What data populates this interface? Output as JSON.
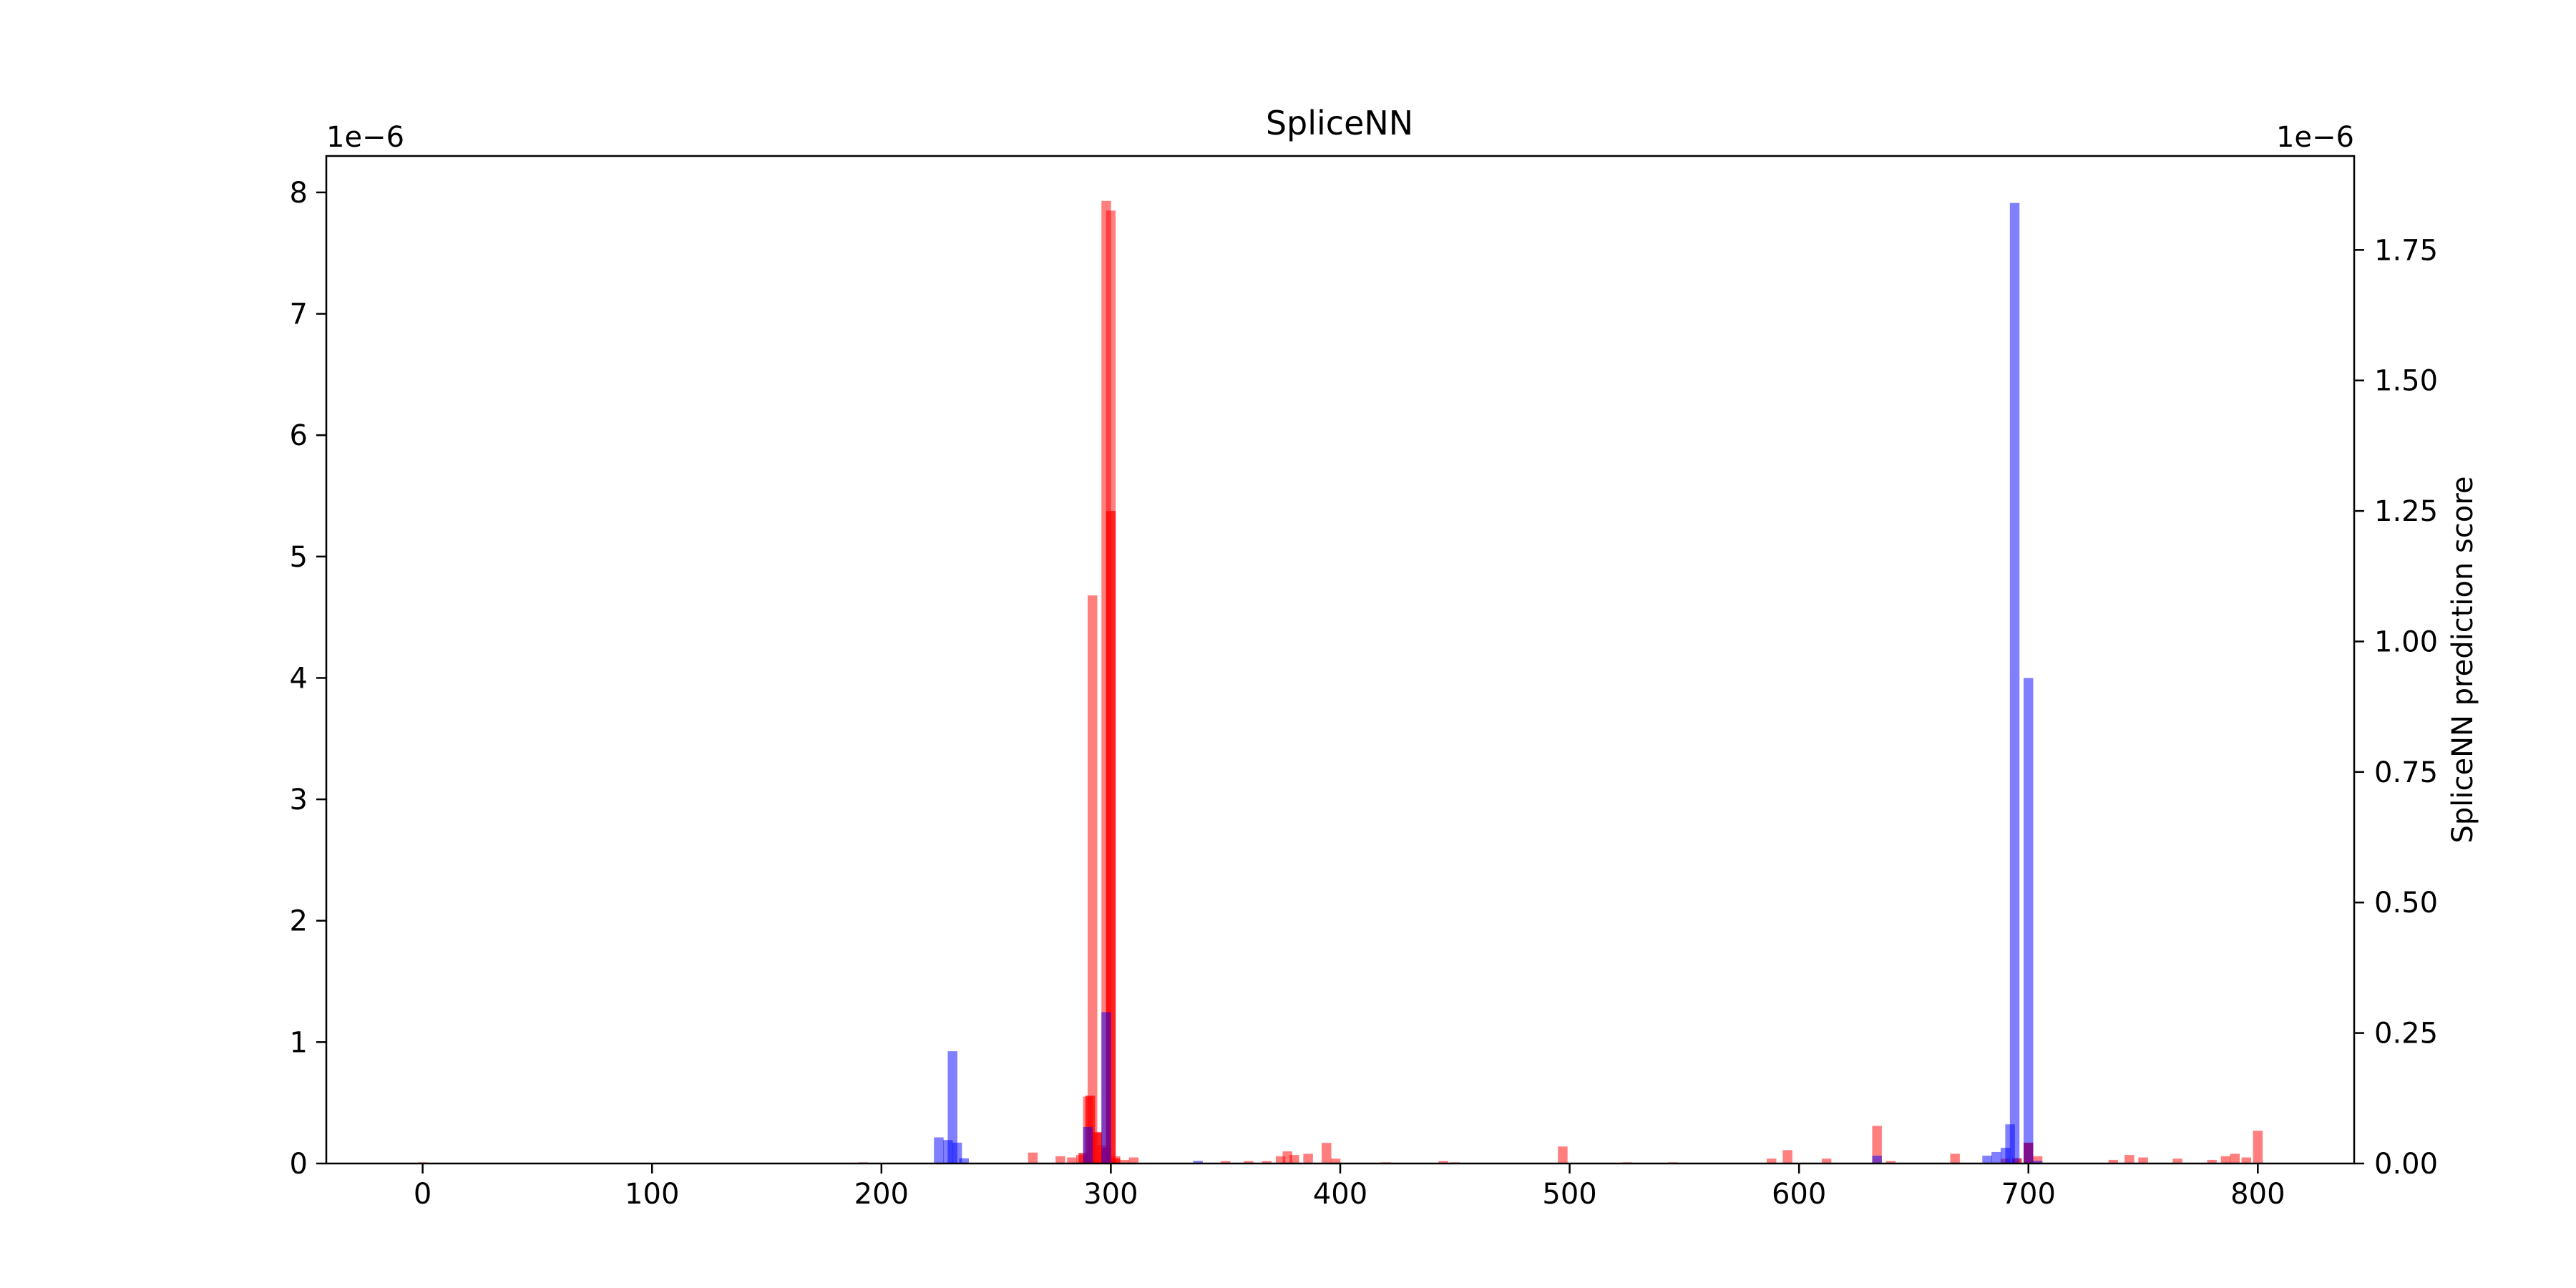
{
  "chart_data": {
    "type": "bar",
    "title": "SpliceNN",
    "xlabel": "",
    "ylabel_left": "",
    "ylabel_right": "SpliceNN prediction score",
    "xlim": [
      -42,
      842
    ],
    "ylim_left": [
      0,
      8.3
    ],
    "ylim_right": [
      0,
      1.93
    ],
    "offset_left": "1e−6",
    "offset_right": "1e−6",
    "bar_width": 4.2,
    "x_ticks": [
      "0",
      "100",
      "200",
      "300",
      "400",
      "500",
      "600",
      "700",
      "800"
    ],
    "x_tick_values": [
      0,
      100,
      200,
      300,
      400,
      500,
      600,
      700,
      800
    ],
    "y_ticks_left": [
      "0",
      "1",
      "2",
      "3",
      "4",
      "5",
      "6",
      "7",
      "8"
    ],
    "y_tick_values_left": [
      0,
      1,
      2,
      3,
      4,
      5,
      6,
      7,
      8
    ],
    "y_ticks_right": [
      "0.00",
      "0.25",
      "0.50",
      "0.75",
      "1.00",
      "1.25",
      "1.50",
      "1.75"
    ],
    "y_tick_values_right": [
      0,
      0.25,
      0.5,
      0.75,
      1.0,
      1.25,
      1.5,
      1.75
    ],
    "series": [
      {
        "color": "#ff0000",
        "opacity": 0.5,
        "axis": "left",
        "points": [
          [
            0,
            0.01
          ],
          [
            192,
            0.01
          ],
          [
            266,
            0.09
          ],
          [
            278,
            0.06
          ],
          [
            283,
            0.05
          ],
          [
            287,
            0.07
          ],
          [
            290,
            0.55
          ],
          [
            292,
            4.68
          ],
          [
            294,
            0.25
          ],
          [
            296,
            0.15
          ],
          [
            298,
            7.93
          ],
          [
            300,
            7.85
          ],
          [
            302,
            0.06
          ],
          [
            306,
            0.03
          ],
          [
            310,
            0.05
          ],
          [
            350,
            0.02
          ],
          [
            360,
            0.02
          ],
          [
            368,
            0.02
          ],
          [
            374,
            0.06
          ],
          [
            377,
            0.1
          ],
          [
            380,
            0.07
          ],
          [
            386,
            0.08
          ],
          [
            394,
            0.17
          ],
          [
            398,
            0.04
          ],
          [
            420,
            0.01
          ],
          [
            445,
            0.02
          ],
          [
            450,
            0.01
          ],
          [
            497,
            0.14
          ],
          [
            525,
            0.01
          ],
          [
            545,
            0.01
          ],
          [
            588,
            0.04
          ],
          [
            595,
            0.11
          ],
          [
            612,
            0.04
          ],
          [
            634,
            0.31
          ],
          [
            640,
            0.02
          ],
          [
            668,
            0.08
          ],
          [
            690,
            0.04
          ],
          [
            700,
            0.17
          ],
          [
            704,
            0.06
          ],
          [
            737,
            0.03
          ],
          [
            744,
            0.07
          ],
          [
            750,
            0.05
          ],
          [
            765,
            0.04
          ],
          [
            780,
            0.03
          ],
          [
            786,
            0.06
          ],
          [
            790,
            0.08
          ],
          [
            795,
            0.05
          ],
          [
            800,
            0.27
          ]
        ]
      },
      {
        "color": "#ff0000",
        "opacity": 0.75,
        "axis": "right",
        "points": [
          [
            288,
            0.02
          ],
          [
            291,
            0.13
          ],
          [
            294,
            0.06
          ],
          [
            298,
            0.03
          ],
          [
            300,
            1.25
          ],
          [
            302,
            0.01
          ],
          [
            695,
            0.01
          ],
          [
            700,
            0.04
          ]
        ]
      },
      {
        "color": "#0000ff",
        "opacity": 0.5,
        "axis": "right",
        "points": [
          [
            225,
            0.05
          ],
          [
            229,
            0.045
          ],
          [
            231,
            0.215
          ],
          [
            233,
            0.04
          ],
          [
            236,
            0.01
          ],
          [
            290,
            0.07
          ],
          [
            298,
            0.29
          ],
          [
            338,
            0.005
          ],
          [
            634,
            0.015
          ],
          [
            682,
            0.015
          ],
          [
            686,
            0.022
          ],
          [
            690,
            0.03
          ],
          [
            692,
            0.075
          ],
          [
            694,
            1.84
          ],
          [
            700,
            0.93
          ],
          [
            704,
            0.005
          ]
        ]
      }
    ]
  }
}
